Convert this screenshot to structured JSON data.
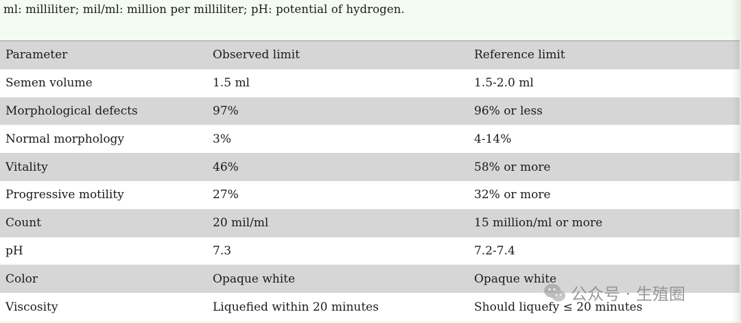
{
  "footnote": "ml: milliliter; mil/ml: million per milliliter; pH: potential of hydrogen.",
  "table": {
    "header": [
      "Parameter",
      "Observed limit",
      "Reference limit"
    ],
    "rows": [
      [
        "Semen volume",
        "1.5 ml",
        "1.5-2.0 ml"
      ],
      [
        "Morphological defects",
        "97%",
        "96% or less"
      ],
      [
        "Normal morphology",
        "3%",
        "4-14%"
      ],
      [
        "Vitality",
        "46%",
        "58% or more"
      ],
      [
        "Progressive motility",
        "27%",
        "32% or more"
      ],
      [
        "Count",
        "20 mil/ml",
        "15 million/ml or more"
      ],
      [
        "pH",
        "7.3",
        "7.2-7.4"
      ],
      [
        "Color",
        "Opaque white",
        "Opaque white"
      ],
      [
        "Viscosity",
        "Liquefied within 20 minutes",
        "Should liquefy ≤ 20 minutes"
      ]
    ]
  },
  "watermark": {
    "icon": "wechat-icon",
    "text": "公众号 · 生殖圈"
  },
  "colors": {
    "background": "#f4fbf1",
    "row_shade": "#d6d6d6",
    "row_plain": "#ffffff"
  }
}
